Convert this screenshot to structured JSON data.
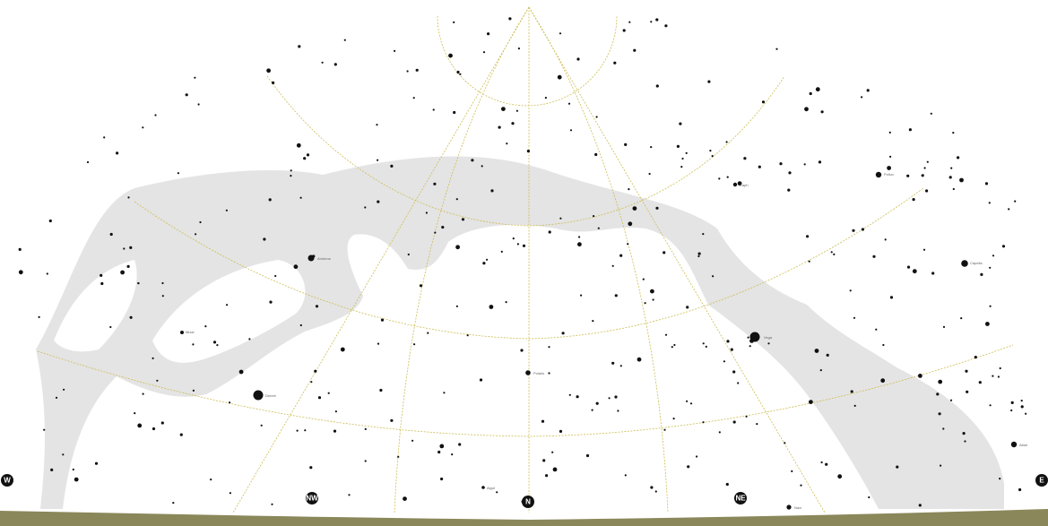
{
  "map": {
    "type": "star-chart",
    "projection": "horizon",
    "grid": true,
    "milky_way": true,
    "colors": {
      "background": "#ffffff",
      "milky_way": "#e4e4e4",
      "grid": "#cdbd52",
      "ground": "#8a875a",
      "star": "#111111",
      "cardinal_marker": "#111111",
      "label": "#666666"
    }
  },
  "cardinal_points": [
    "W",
    "NW",
    "N",
    "NE",
    "E"
  ],
  "bright_star_labels": [
    "Pollux",
    "Capella",
    "Polaris",
    "Vega",
    "Deneb",
    "Altair",
    "Arcturus",
    "Mizar",
    "Caph",
    "Navi",
    "Algol",
    "Mirfak",
    "Alcor",
    "Dubhe",
    "Aldebaran"
  ]
}
